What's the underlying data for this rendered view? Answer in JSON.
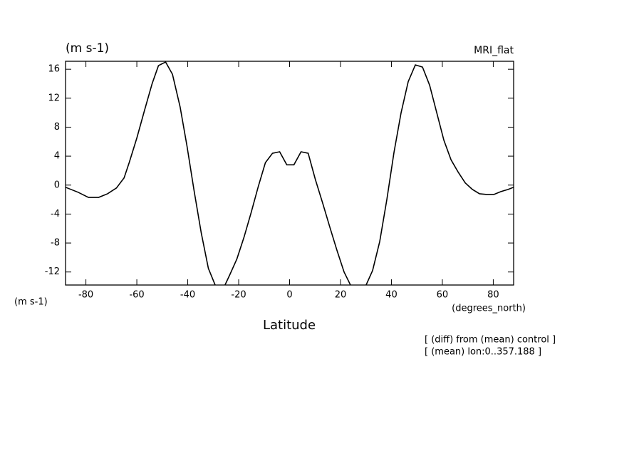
{
  "chart_data": {
    "type": "line",
    "title": "MRI_flat",
    "y_unit_label": "(m s-1)",
    "y_unit_label_bottom": "(m s-1)",
    "x_unit_label": "(degrees_north)",
    "xlabel": "Latitude",
    "annotations": [
      "[ (diff) from (mean) control ]",
      "[ (mean) lon:0..357.188 ]"
    ],
    "x": [
      -88,
      -83,
      -79,
      -75,
      -71.5,
      -68,
      -65,
      -63,
      -60,
      -57,
      -54,
      -51.5,
      -48.7,
      -46,
      -43,
      -40.3,
      -37.5,
      -34.7,
      -31.9,
      -29,
      -26.3,
      -23.5,
      -20.7,
      -17.9,
      -15.1,
      -12.3,
      -9.5,
      -6.7,
      -3.9,
      -1.1,
      1.7,
      4.5,
      7.3,
      10.1,
      13,
      15.8,
      18.6,
      21.4,
      24.2,
      27,
      29.8,
      32.6,
      35.4,
      38.2,
      41,
      43.8,
      46.6,
      49.4,
      52.2,
      55,
      57.8,
      60.6,
      63.4,
      66.2,
      69,
      71.8,
      74.6,
      77.4,
      80.2,
      83,
      85.8,
      88
    ],
    "series": [
      {
        "name": "MRI_flat",
        "color": "#000000",
        "values": [
          -0.3,
          -1.0,
          -1.7,
          -1.7,
          -1.2,
          -0.4,
          1.0,
          3.1,
          6.5,
          10.3,
          14.0,
          16.5,
          17.0,
          15.3,
          10.8,
          5.4,
          -0.8,
          -6.6,
          -11.5,
          -14.0,
          -14.5,
          -12.4,
          -10.2,
          -7.2,
          -3.8,
          -0.2,
          3.1,
          4.4,
          4.6,
          2.8,
          2.8,
          4.6,
          4.4,
          0.8,
          -2.5,
          -5.8,
          -9.0,
          -12.0,
          -14.0,
          -14.5,
          -14.0,
          -11.8,
          -7.8,
          -2.0,
          4.5,
          10.0,
          14.3,
          16.6,
          16.3,
          13.8,
          10.0,
          6.2,
          3.5,
          1.8,
          0.3,
          -0.6,
          -1.2,
          -1.3,
          -1.3,
          -0.9,
          -0.6,
          -0.3
        ]
      }
    ],
    "xlim": [
      -88,
      88
    ],
    "ylim": [
      -13.8,
      17.1
    ],
    "xticks": [
      -80,
      -60,
      -40,
      -20,
      0,
      20,
      40,
      60,
      80
    ],
    "yticks": [
      -12,
      -8,
      -4,
      0,
      4,
      8,
      12,
      16
    ]
  }
}
